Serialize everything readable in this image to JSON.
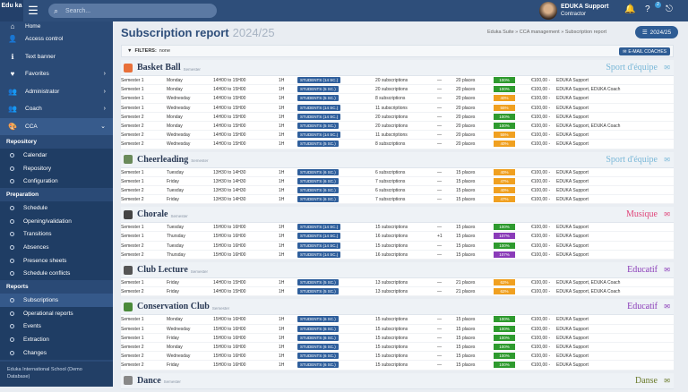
{
  "app": {
    "logo": "Edu ka",
    "search_placeholder": "Search...",
    "user_name": "EDUKA Support",
    "user_role": "Contractor",
    "help_badge": "2"
  },
  "sidebar": {
    "top_items": [
      {
        "label": "Home",
        "icon": "home-icon"
      },
      {
        "label": "Access control",
        "icon": "user-lock-icon"
      },
      {
        "label": "Text banner",
        "icon": "info-icon"
      },
      {
        "label": "Favorites",
        "icon": "heart-icon"
      },
      {
        "label": "Administrator",
        "icon": "users-icon"
      },
      {
        "label": "Coach",
        "icon": "users-icon"
      },
      {
        "label": "CCA",
        "icon": "palette-icon"
      }
    ],
    "sections": [
      {
        "title": "Repository",
        "items": [
          "Calendar",
          "Repository",
          "Configuration"
        ]
      },
      {
        "title": "Preparation",
        "items": [
          "Schedule",
          "Opening/validation",
          "Transitions",
          "Absences",
          "Presence sheets",
          "Schedule conflicts"
        ]
      },
      {
        "title": "Reports",
        "items": [
          "Subscriptions",
          "Operational reports",
          "Events",
          "Extraction",
          "Changes"
        ]
      }
    ],
    "footer": "Eduka International School (Demo Database)"
  },
  "page": {
    "title": "Subscription report",
    "year": "2024/25",
    "breadcrumb": "Eduka Suite » CCA management » Subscription report",
    "year_button": "2024/25",
    "filters_label": "FILTERS:",
    "filters_value": "none",
    "email_button": "E-MAIL COACHES"
  },
  "colors": {
    "ok": "#2e9a2e",
    "warn": "#f0a020",
    "full": "#8a3bb8"
  },
  "groups": [
    {
      "name": "Basket Ball",
      "sub": "Semester",
      "category": "Sport d'équipe",
      "cat_color": "#7ab8d8",
      "icon_color": "#e8703a",
      "rows": [
        [
          "Semester 1",
          "Monday",
          "14H00 to 15H00",
          "1H",
          "STUDENTS (14 SC.)",
          "20 subscriptions",
          "—",
          "20 places",
          "100%",
          "ok",
          "€100,00  -",
          "EDUKA Support"
        ],
        [
          "Semester 1",
          "Monday",
          "14H00 to 15H00",
          "1H",
          "STUDENTS (5 SC.)",
          "20 subscriptions",
          "—",
          "20 places",
          "100%",
          "ok",
          "€100,00  -",
          "EDUKA Support, EDUKA Coach"
        ],
        [
          "Semester 1",
          "Wednesday",
          "14H00 to 15H00",
          "1H",
          "STUDENTS (5 SC.)",
          "8 subscriptions",
          "—",
          "20 places",
          "40%",
          "warn",
          "€100,00  -",
          "EDUKA Support"
        ],
        [
          "Semester 1",
          "Wednesday",
          "14H00 to 15H00",
          "1H",
          "STUDENTS (14 SC.)",
          "11 subscriptions",
          "—",
          "20 places",
          "55%",
          "warn",
          "€100,00  -",
          "EDUKA Support"
        ],
        [
          "Semester 2",
          "Monday",
          "14H00 to 15H00",
          "1H",
          "STUDENTS (14 SC.)",
          "20 subscriptions",
          "—",
          "20 places",
          "100%",
          "ok",
          "€100,00  -",
          "EDUKA Support"
        ],
        [
          "Semester 2",
          "Monday",
          "14H00 to 15H00",
          "1H",
          "STUDENTS (5 SC.)",
          "20 subscriptions",
          "—",
          "20 places",
          "100%",
          "ok",
          "€100,00  -",
          "EDUKA Support, EDUKA Coach"
        ],
        [
          "Semester 2",
          "Wednesday",
          "14H00 to 15H00",
          "1H",
          "STUDENTS (14 SC.)",
          "11 subscriptions",
          "—",
          "20 places",
          "55%",
          "warn",
          "€100,00  -",
          "EDUKA Support"
        ],
        [
          "Semester 2",
          "Wednesday",
          "14H00 to 15H00",
          "1H",
          "STUDENTS (5 SC.)",
          "8 subscriptions",
          "—",
          "20 places",
          "40%",
          "warn",
          "€100,00  -",
          "EDUKA Support"
        ]
      ]
    },
    {
      "name": "Cheerleading",
      "sub": "Semester",
      "category": "Sport d'équipe",
      "cat_color": "#7ab8d8",
      "icon_color": "#6a8a5a",
      "rows": [
        [
          "Semester 1",
          "Tuesday",
          "13H30 to 14H30",
          "1H",
          "STUDENTS (6 SC.)",
          "6 subscriptions",
          "—",
          "15 places",
          "40%",
          "warn",
          "€100,00  -",
          "EDUKA Support"
        ],
        [
          "Semester 1",
          "Friday",
          "13H30 to 14H30",
          "1H",
          "STUDENTS (6 SC.)",
          "7 subscriptions",
          "—",
          "15 places",
          "47%",
          "warn",
          "€100,00  -",
          "EDUKA Support"
        ],
        [
          "Semester 2",
          "Tuesday",
          "13H30 to 14H30",
          "1H",
          "STUDENTS (6 SC.)",
          "6 subscriptions",
          "—",
          "15 places",
          "40%",
          "warn",
          "€100,00  -",
          "EDUKA Support"
        ],
        [
          "Semester 2",
          "Friday",
          "13H30 to 14H30",
          "1H",
          "STUDENTS (6 SC.)",
          "7 subscriptions",
          "—",
          "15 places",
          "47%",
          "warn",
          "€100,00  -",
          "EDUKA Support"
        ]
      ]
    },
    {
      "name": "Chorale",
      "sub": "Semester",
      "category": "Musique",
      "cat_color": "#e0457a",
      "icon_color": "#444",
      "rows": [
        [
          "Semester 1",
          "Tuesday",
          "15H00 to 16H00",
          "1H",
          "STUDENTS (14 SC.)",
          "15 subscriptions",
          "—",
          "15 places",
          "100%",
          "ok",
          "€100,00  -",
          "EDUKA Support"
        ],
        [
          "Semester 1",
          "Thursday",
          "15H00 to 16H00",
          "1H",
          "STUDENTS (14 SC.)",
          "16 subscriptions",
          "+1",
          "15 places",
          "107%",
          "full",
          "€100,00  -",
          "EDUKA Support"
        ],
        [
          "Semester 2",
          "Tuesday",
          "15H00 to 16H00",
          "1H",
          "STUDENTS (14 SC.)",
          "15 subscriptions",
          "—",
          "15 places",
          "100%",
          "ok",
          "€100,00  -",
          "EDUKA Support"
        ],
        [
          "Semester 2",
          "Thursday",
          "15H00 to 16H00",
          "1H",
          "STUDENTS (14 SC.)",
          "16 subscriptions",
          "—",
          "15 places",
          "107%",
          "full",
          "€100,00  -",
          "EDUKA Support"
        ]
      ]
    },
    {
      "name": "Club Lecture",
      "sub": "Semester",
      "category": "Educatif",
      "cat_color": "#8a3bb8",
      "icon_color": "#555",
      "rows": [
        [
          "Semester 1",
          "Friday",
          "14H00 to 15H00",
          "1H",
          "STUDENTS (5 SC.)",
          "13 subscriptions",
          "—",
          "21 places",
          "62%",
          "warn",
          "€100,00  -",
          "EDUKA Support, EDUKA Coach"
        ],
        [
          "Semester 2",
          "Friday",
          "14H00 to 15H00",
          "1H",
          "STUDENTS (5 SC.)",
          "13 subscriptions",
          "—",
          "21 places",
          "62%",
          "warn",
          "€100,00  -",
          "EDUKA Support, EDUKA Coach"
        ]
      ]
    },
    {
      "name": "Conservation Club",
      "sub": "Semester",
      "category": "Educatif",
      "cat_color": "#8a3bb8",
      "icon_color": "#4a8a3a",
      "rows": [
        [
          "Semester 1",
          "Monday",
          "15H00 to 16H00",
          "1H",
          "STUDENTS (6 SC.)",
          "15 subscriptions",
          "—",
          "15 places",
          "100%",
          "ok",
          "€100,00  -",
          "EDUKA Support"
        ],
        [
          "Semester 1",
          "Wednesday",
          "15H00 to 16H00",
          "1H",
          "STUDENTS (6 SC.)",
          "15 subscriptions",
          "—",
          "15 places",
          "100%",
          "ok",
          "€100,00  -",
          "EDUKA Support"
        ],
        [
          "Semester 1",
          "Friday",
          "15H00 to 16H00",
          "1H",
          "STUDENTS (6 SC.)",
          "15 subscriptions",
          "—",
          "15 places",
          "100%",
          "ok",
          "€100,00  -",
          "EDUKA Support"
        ],
        [
          "Semester 2",
          "Monday",
          "15H00 to 16H00",
          "1H",
          "STUDENTS (6 SC.)",
          "15 subscriptions",
          "—",
          "15 places",
          "100%",
          "ok",
          "€100,00  -",
          "EDUKA Support"
        ],
        [
          "Semester 2",
          "Wednesday",
          "15H00 to 16H00",
          "1H",
          "STUDENTS (6 SC.)",
          "15 subscriptions",
          "—",
          "15 places",
          "100%",
          "ok",
          "€100,00  -",
          "EDUKA Support"
        ],
        [
          "Semester 2",
          "Friday",
          "15H00 to 16H00",
          "1H",
          "STUDENTS (6 SC.)",
          "15 subscriptions",
          "—",
          "15 places",
          "100%",
          "ok",
          "€100,00  -",
          "EDUKA Support"
        ]
      ]
    },
    {
      "name": "Dance",
      "sub": "Semester",
      "category": "Danse",
      "cat_color": "#6a7a2a",
      "icon_color": "#888",
      "rows": []
    }
  ]
}
